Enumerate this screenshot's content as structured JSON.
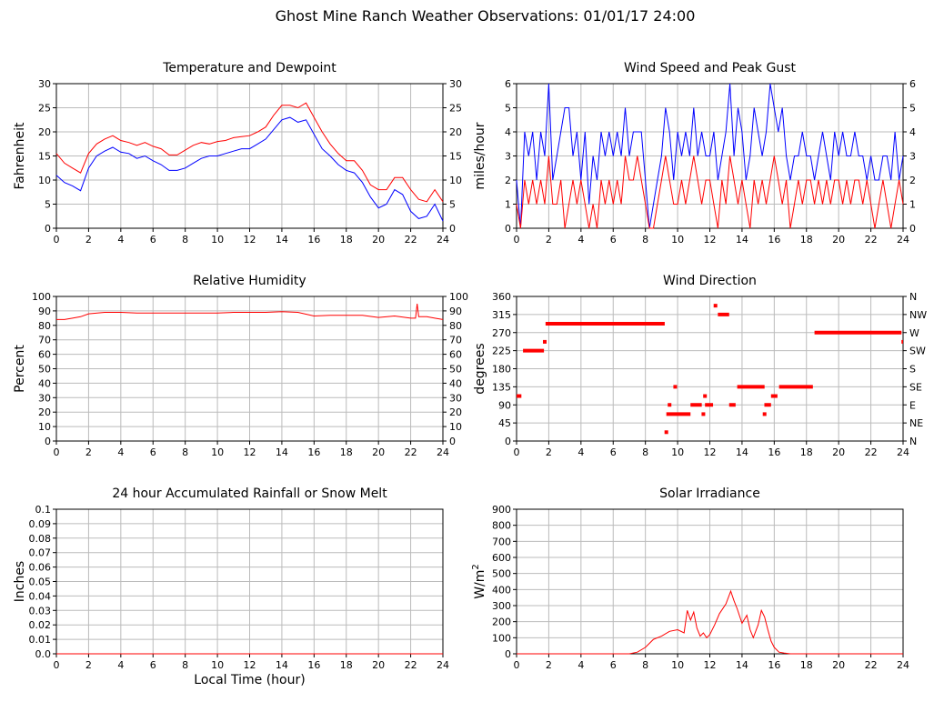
{
  "page_title": "Ghost Mine Ranch Weather Observations: 01/01/17 24:00",
  "colors": {
    "red": "#ff0000",
    "blue": "#0000ff",
    "grid": "#bbbbbb",
    "axis": "#000000"
  },
  "xlabel_shared": "Local Time (hour)",
  "chart_data": [
    {
      "id": "temp",
      "type": "line",
      "title": "Temperature and Dewpoint",
      "xlabel": "",
      "ylabel": "Fahrenheit",
      "xlim": [
        0,
        24
      ],
      "ylim": [
        0,
        30
      ],
      "xticks": [
        0,
        2,
        4,
        6,
        8,
        10,
        12,
        14,
        16,
        18,
        20,
        22,
        24
      ],
      "yticks": [
        0,
        5,
        10,
        15,
        20,
        25,
        30
      ],
      "right_axis": true,
      "grid": true,
      "series": [
        {
          "color": "#ff0000",
          "x": [
            0,
            0.5,
            1,
            1.5,
            2,
            2.5,
            3,
            3.5,
            4,
            4.5,
            5,
            5.5,
            6,
            6.5,
            7,
            7.5,
            8,
            8.5,
            9,
            9.5,
            10,
            10.5,
            11,
            11.5,
            12,
            12.5,
            13,
            13.5,
            14,
            14.5,
            15,
            15.5,
            16,
            16.5,
            17,
            17.5,
            18,
            18.5,
            19,
            19.5,
            20,
            20.5,
            21,
            21.5,
            22,
            22.5,
            23,
            23.5,
            24
          ],
          "values": [
            15.5,
            13.5,
            12.5,
            11.5,
            15.5,
            17.5,
            18.5,
            19.2,
            18.2,
            17.8,
            17.2,
            17.8,
            17,
            16.5,
            15.2,
            15.2,
            16.2,
            17.2,
            17.8,
            17.5,
            18,
            18.2,
            18.8,
            19,
            19.2,
            20,
            21,
            23.5,
            25.5,
            25.5,
            25,
            26,
            23,
            20,
            17.5,
            15.5,
            14,
            14,
            12,
            9,
            8,
            8,
            10.5,
            10.5,
            8,
            6,
            5.5,
            8,
            5.5
          ]
        },
        {
          "color": "#0000ff",
          "x": [
            0,
            0.5,
            1,
            1.5,
            2,
            2.5,
            3,
            3.5,
            4,
            4.5,
            5,
            5.5,
            6,
            6.5,
            7,
            7.5,
            8,
            8.5,
            9,
            9.5,
            10,
            10.5,
            11,
            11.5,
            12,
            12.5,
            13,
            13.5,
            14,
            14.5,
            15,
            15.5,
            16,
            16.5,
            17,
            17.5,
            18,
            18.5,
            19,
            19.5,
            20,
            20.5,
            21,
            21.5,
            22,
            22.5,
            23,
            23.5,
            24
          ],
          "values": [
            11,
            9.5,
            8.8,
            7.8,
            12.5,
            15,
            16,
            16.8,
            15.8,
            15.5,
            14.5,
            15,
            14,
            13.2,
            12,
            12,
            12.5,
            13.5,
            14.5,
            15,
            15,
            15.5,
            16,
            16.5,
            16.5,
            17.5,
            18.5,
            20.5,
            22.5,
            23,
            22,
            22.5,
            19.5,
            16.5,
            15,
            13.2,
            12,
            11.5,
            9.5,
            6.5,
            4.2,
            5,
            8,
            7,
            3.5,
            2,
            2.5,
            5,
            1.5
          ]
        }
      ]
    },
    {
      "id": "wind",
      "type": "line",
      "title": "Wind Speed and Peak Gust",
      "xlabel": "",
      "ylabel": "miles/hour",
      "xlim": [
        0,
        24
      ],
      "ylim": [
        0,
        6
      ],
      "xticks": [
        0,
        2,
        4,
        6,
        8,
        10,
        12,
        14,
        16,
        18,
        20,
        22,
        24
      ],
      "yticks": [
        0,
        1,
        2,
        3,
        4,
        5,
        6
      ],
      "right_axis": true,
      "grid": true,
      "series": [
        {
          "color": "#0000ff",
          "x": [
            0,
            0.25,
            0.5,
            0.75,
            1,
            1.25,
            1.5,
            1.75,
            2,
            2.25,
            2.5,
            2.75,
            3,
            3.25,
            3.5,
            3.75,
            4,
            4.25,
            4.5,
            4.75,
            5,
            5.25,
            5.5,
            5.75,
            6,
            6.25,
            6.5,
            6.75,
            7,
            7.25,
            7.5,
            7.75,
            8,
            8.25,
            8.5,
            8.75,
            9,
            9.25,
            9.5,
            9.75,
            10,
            10.25,
            10.5,
            10.75,
            11,
            11.25,
            11.5,
            11.75,
            12,
            12.25,
            12.5,
            12.75,
            13,
            13.25,
            13.5,
            13.75,
            14,
            14.25,
            14.5,
            14.75,
            15,
            15.25,
            15.5,
            15.75,
            16,
            16.25,
            16.5,
            16.75,
            17,
            17.25,
            17.5,
            17.75,
            18,
            18.25,
            18.5,
            18.75,
            19,
            19.25,
            19.5,
            19.75,
            20,
            20.25,
            20.5,
            20.75,
            21,
            21.25,
            21.5,
            21.75,
            22,
            22.25,
            22.5,
            22.75,
            23,
            23.25,
            23.5,
            23.75,
            24
          ],
          "values": [
            2,
            0,
            4,
            3,
            4,
            2,
            4,
            3,
            6,
            2,
            3,
            4,
            5,
            5,
            3,
            4,
            2,
            4,
            1,
            3,
            2,
            4,
            3,
            4,
            3,
            4,
            3,
            5,
            3,
            4,
            4,
            4,
            2,
            0,
            1,
            2,
            3,
            5,
            4,
            2,
            4,
            3,
            4,
            3,
            5,
            3,
            4,
            3,
            3,
            4,
            2,
            3,
            4,
            6,
            3,
            5,
            4,
            2,
            3,
            5,
            4,
            3,
            4,
            6,
            5,
            4,
            5,
            3,
            2,
            3,
            3,
            4,
            3,
            3,
            2,
            3,
            4,
            3,
            2,
            4,
            3,
            4,
            3,
            3,
            4,
            3,
            3,
            2,
            3,
            2,
            2,
            3,
            3,
            2,
            4,
            2,
            3
          ]
        },
        {
          "color": "#ff0000",
          "x": [
            0,
            0.25,
            0.5,
            0.75,
            1,
            1.25,
            1.5,
            1.75,
            2,
            2.25,
            2.5,
            2.75,
            3,
            3.25,
            3.5,
            3.75,
            4,
            4.25,
            4.5,
            4.75,
            5,
            5.25,
            5.5,
            5.75,
            6,
            6.25,
            6.5,
            6.75,
            7,
            7.25,
            7.5,
            7.75,
            8,
            8.25,
            8.5,
            8.75,
            9,
            9.25,
            9.5,
            9.75,
            10,
            10.25,
            10.5,
            10.75,
            11,
            11.25,
            11.5,
            11.75,
            12,
            12.25,
            12.5,
            12.75,
            13,
            13.25,
            13.5,
            13.75,
            14,
            14.25,
            14.5,
            14.75,
            15,
            15.25,
            15.5,
            15.75,
            16,
            16.25,
            16.5,
            16.75,
            17,
            17.25,
            17.5,
            17.75,
            18,
            18.25,
            18.5,
            18.75,
            19,
            19.25,
            19.5,
            19.75,
            20,
            20.25,
            20.5,
            20.75,
            21,
            21.25,
            21.5,
            21.75,
            22,
            22.25,
            22.5,
            22.75,
            23,
            23.25,
            23.5,
            23.75,
            24
          ],
          "values": [
            1,
            0,
            2,
            1,
            2,
            1,
            2,
            1,
            3,
            1,
            1,
            2,
            0,
            1,
            2,
            1,
            2,
            1,
            0,
            1,
            0,
            2,
            1,
            2,
            1,
            2,
            1,
            3,
            2,
            2,
            3,
            2,
            1,
            0,
            0,
            1,
            2,
            3,
            2,
            1,
            1,
            2,
            1,
            2,
            3,
            2,
            1,
            2,
            2,
            1,
            0,
            2,
            1,
            3,
            2,
            1,
            2,
            1,
            0,
            2,
            1,
            2,
            1,
            2,
            3,
            2,
            1,
            2,
            0,
            1,
            2,
            1,
            2,
            2,
            1,
            2,
            1,
            2,
            1,
            2,
            2,
            1,
            2,
            1,
            2,
            2,
            1,
            2,
            1,
            0,
            1,
            2,
            1,
            0,
            1,
            2,
            1
          ]
        }
      ]
    },
    {
      "id": "rh",
      "type": "line",
      "title": "Relative Humidity",
      "xlabel": "",
      "ylabel": "Percent",
      "xlim": [
        0,
        24
      ],
      "ylim": [
        0,
        100
      ],
      "xticks": [
        0,
        2,
        4,
        6,
        8,
        10,
        12,
        14,
        16,
        18,
        20,
        22,
        24
      ],
      "yticks": [
        0,
        10,
        20,
        30,
        40,
        50,
        60,
        70,
        80,
        90,
        100
      ],
      "right_axis": true,
      "grid": true,
      "series": [
        {
          "color": "#ff0000",
          "x": [
            0,
            0.5,
            1,
            1.5,
            2,
            3,
            4,
            5,
            6,
            7,
            8,
            9,
            10,
            11,
            12,
            13,
            14,
            15,
            16,
            17,
            18,
            19,
            20,
            21,
            22,
            22.3,
            22.4,
            22.5,
            23,
            23.5,
            24
          ],
          "values": [
            84,
            84,
            85,
            86,
            88,
            89,
            89,
            88.5,
            88.5,
            88.5,
            88.5,
            88.5,
            88.5,
            89,
            89,
            89,
            89.5,
            89,
            86.5,
            87,
            87,
            87,
            85.5,
            86.5,
            85,
            85,
            95,
            86,
            86,
            85,
            84
          ]
        }
      ]
    },
    {
      "id": "wdir",
      "type": "scatter",
      "title": "Wind Direction",
      "xlabel": "",
      "ylabel": "degrees",
      "xlim": [
        0,
        24
      ],
      "ylim": [
        0,
        360
      ],
      "xticks": [
        0,
        2,
        4,
        6,
        8,
        10,
        12,
        14,
        16,
        18,
        20,
        22,
        24
      ],
      "yticks": [
        0,
        45,
        90,
        135,
        180,
        225,
        270,
        315,
        360
      ],
      "right_ticklabels": [
        "N",
        "NE",
        "E",
        "SE",
        "S",
        "SW",
        "W",
        "NW",
        "N"
      ],
      "grid": true,
      "segments": [
        {
          "x": [
            0,
            0.3
          ],
          "y": 112
        },
        {
          "x": [
            0.4,
            1.7
          ],
          "y": 225
        },
        {
          "x": [
            1.8,
            9.2
          ],
          "y": 292
        },
        {
          "x": [
            9.3,
            10.8
          ],
          "y": 67
        },
        {
          "x": [
            10.8,
            11.5
          ],
          "y": 90
        },
        {
          "x": [
            11.7,
            12.2
          ],
          "y": 90
        },
        {
          "x": [
            12.5,
            13.2
          ],
          "y": 315
        },
        {
          "x": [
            13.2,
            13.6
          ],
          "y": 90
        },
        {
          "x": [
            13.7,
            15.4
          ],
          "y": 135
        },
        {
          "x": [
            15.6,
            15.8
          ],
          "y": 90
        },
        {
          "x": [
            15.8,
            16.2
          ],
          "y": 112
        },
        {
          "x": [
            16.3,
            18.4
          ],
          "y": 135
        },
        {
          "x": [
            18.5,
            23.9
          ],
          "y": 270
        },
        {
          "x": [
            23.9,
            24
          ],
          "y": 247
        }
      ],
      "points": [
        {
          "x": 1.75,
          "y": 247
        },
        {
          "x": 9.3,
          "y": 22
        },
        {
          "x": 9.5,
          "y": 90
        },
        {
          "x": 9.85,
          "y": 135
        },
        {
          "x": 11.6,
          "y": 67
        },
        {
          "x": 11.7,
          "y": 112
        },
        {
          "x": 12.35,
          "y": 337
        },
        {
          "x": 15.4,
          "y": 67
        },
        {
          "x": 15.5,
          "y": 90
        }
      ]
    },
    {
      "id": "rain",
      "type": "line",
      "title": "24 hour Accumulated Rainfall or Snow Melt",
      "xlabel": "Local Time (hour)",
      "ylabel": "Inches",
      "xlim": [
        0,
        24
      ],
      "ylim": [
        0,
        0.1
      ],
      "xticks": [
        0,
        2,
        4,
        6,
        8,
        10,
        12,
        14,
        16,
        18,
        20,
        22,
        24
      ],
      "yticks": [
        0.0,
        0.01,
        0.02,
        0.03,
        0.04,
        0.05,
        0.06,
        0.07,
        0.08,
        0.09,
        0.1
      ],
      "ytick_labels": [
        "0.0",
        "0.01",
        "0.02",
        "0.03",
        "0.04",
        "0.05",
        "0.06",
        "0.07",
        "0.08",
        "0.09",
        "0.1"
      ],
      "grid": true,
      "series": [
        {
          "color": "#ff0000",
          "x": [
            0,
            24
          ],
          "values": [
            0,
            0
          ]
        }
      ]
    },
    {
      "id": "solar",
      "type": "line",
      "title": "Solar Irradiance",
      "xlabel": "",
      "ylabel": "W/m",
      "ylabel_superscript": "2",
      "xlim": [
        0,
        24
      ],
      "ylim": [
        0,
        900
      ],
      "xticks": [
        0,
        2,
        4,
        6,
        8,
        10,
        12,
        14,
        16,
        18,
        20,
        22,
        24
      ],
      "yticks": [
        0,
        100,
        200,
        300,
        400,
        500,
        600,
        700,
        800,
        900
      ],
      "grid": true,
      "series": [
        {
          "color": "#ff0000",
          "x": [
            0,
            7,
            7.5,
            8,
            8.5,
            9,
            9.5,
            10,
            10.4,
            10.6,
            10.8,
            11,
            11.2,
            11.4,
            11.6,
            11.8,
            12,
            12.3,
            12.6,
            13,
            13.3,
            13.5,
            13.7,
            14,
            14.3,
            14.5,
            14.7,
            15,
            15.2,
            15.4,
            15.6,
            15.8,
            16,
            16.3,
            16.6,
            17,
            24
          ],
          "values": [
            0,
            0,
            10,
            40,
            90,
            110,
            140,
            150,
            130,
            270,
            210,
            260,
            160,
            110,
            130,
            100,
            120,
            180,
            250,
            310,
            390,
            330,
            280,
            190,
            240,
            150,
            100,
            180,
            270,
            230,
            150,
            80,
            40,
            10,
            5,
            0,
            0
          ]
        }
      ]
    }
  ]
}
